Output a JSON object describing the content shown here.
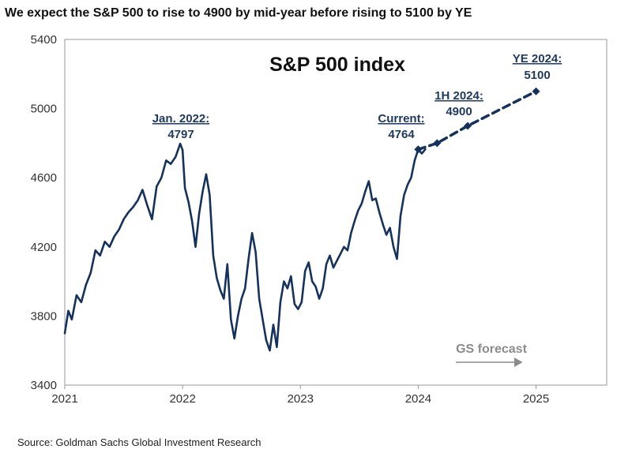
{
  "headline": "We expect the S&P 500 to rise to 4900 by mid-year before rising to 5100 by YE",
  "source": "Source: Goldman Sachs Global Investment Research",
  "colors": {
    "line": "#15325c",
    "annotation": "#1f3a5f",
    "forecast_label": "#8c8c8c",
    "frame": "#9a9a9a"
  },
  "chart_data": {
    "type": "line",
    "title": "S&P 500 index",
    "xlabel": "",
    "ylabel": "",
    "xlim": [
      2021.0,
      2025.6
    ],
    "ylim": [
      3400,
      5400
    ],
    "x_ticks": [
      {
        "value": 2021,
        "label": "2021"
      },
      {
        "value": 2022,
        "label": "2022"
      },
      {
        "value": 2023,
        "label": "2023"
      },
      {
        "value": 2024,
        "label": "2024"
      },
      {
        "value": 2025,
        "label": "2025"
      }
    ],
    "y_ticks": [
      {
        "value": 3400,
        "label": "3400"
      },
      {
        "value": 3800,
        "label": "3800"
      },
      {
        "value": 4200,
        "label": "4200"
      },
      {
        "value": 4600,
        "label": "4600"
      },
      {
        "value": 5000,
        "label": "5000"
      },
      {
        "value": 5400,
        "label": "5400"
      }
    ],
    "series": [
      {
        "name": "S&P 500 index",
        "style": "solid",
        "x": [
          2021.0,
          2021.03,
          2021.06,
          2021.1,
          2021.14,
          2021.18,
          2021.22,
          2021.26,
          2021.3,
          2021.34,
          2021.38,
          2021.42,
          2021.46,
          2021.5,
          2021.54,
          2021.58,
          2021.62,
          2021.66,
          2021.7,
          2021.74,
          2021.78,
          2021.82,
          2021.86,
          2021.9,
          2021.94,
          2021.98,
          2022.0,
          2022.02,
          2022.05,
          2022.08,
          2022.11,
          2022.14,
          2022.17,
          2022.2,
          2022.23,
          2022.26,
          2022.29,
          2022.32,
          2022.35,
          2022.38,
          2022.41,
          2022.44,
          2022.47,
          2022.5,
          2022.53,
          2022.56,
          2022.59,
          2022.62,
          2022.65,
          2022.68,
          2022.71,
          2022.74,
          2022.77,
          2022.8,
          2022.83,
          2022.86,
          2022.89,
          2022.92,
          2022.95,
          2022.98,
          2023.01,
          2023.04,
          2023.07,
          2023.1,
          2023.13,
          2023.16,
          2023.19,
          2023.22,
          2023.25,
          2023.28,
          2023.31,
          2023.34,
          2023.37,
          2023.4,
          2023.43,
          2023.46,
          2023.49,
          2023.52,
          2023.55,
          2023.58,
          2023.61,
          2023.64,
          2023.67,
          2023.7,
          2023.73,
          2023.76,
          2023.79,
          2023.82,
          2023.85,
          2023.88,
          2023.91,
          2023.94,
          2023.97,
          2024.0,
          2024.03,
          2024.06
        ],
        "values": [
          3700,
          3830,
          3780,
          3920,
          3880,
          3980,
          4050,
          4180,
          4150,
          4230,
          4200,
          4260,
          4300,
          4360,
          4400,
          4430,
          4470,
          4530,
          4440,
          4360,
          4550,
          4600,
          4700,
          4680,
          4720,
          4797,
          4760,
          4540,
          4460,
          4350,
          4200,
          4390,
          4520,
          4620,
          4500,
          4150,
          4020,
          3950,
          3900,
          4100,
          3780,
          3670,
          3800,
          3900,
          3960,
          4130,
          4280,
          4170,
          3900,
          3780,
          3660,
          3600,
          3750,
          3620,
          3880,
          4000,
          3960,
          4030,
          3870,
          3840,
          3880,
          4060,
          4110,
          4000,
          3970,
          3900,
          3960,
          4100,
          4150,
          4080,
          4120,
          4160,
          4200,
          4180,
          4280,
          4350,
          4410,
          4450,
          4520,
          4580,
          4470,
          4480,
          4400,
          4330,
          4270,
          4310,
          4200,
          4130,
          4380,
          4500,
          4560,
          4600,
          4700,
          4764,
          4740,
          4764
        ]
      },
      {
        "name": "GS forecast",
        "style": "dashed",
        "x": [
          2024.0,
          2024.16,
          2024.42,
          2025.0
        ],
        "values": [
          4764,
          4800,
          4900,
          5100
        ],
        "markers": [
          true,
          true,
          true,
          true
        ]
      }
    ],
    "annotations": [
      {
        "title": "Jan. 2022:",
        "value": "4797"
      },
      {
        "title": "Current:",
        "value": "4764"
      },
      {
        "title": "1H 2024:",
        "value": "4900"
      },
      {
        "title": "YE 2024:",
        "value": "5100"
      }
    ],
    "forecast_label": "GS forecast"
  }
}
